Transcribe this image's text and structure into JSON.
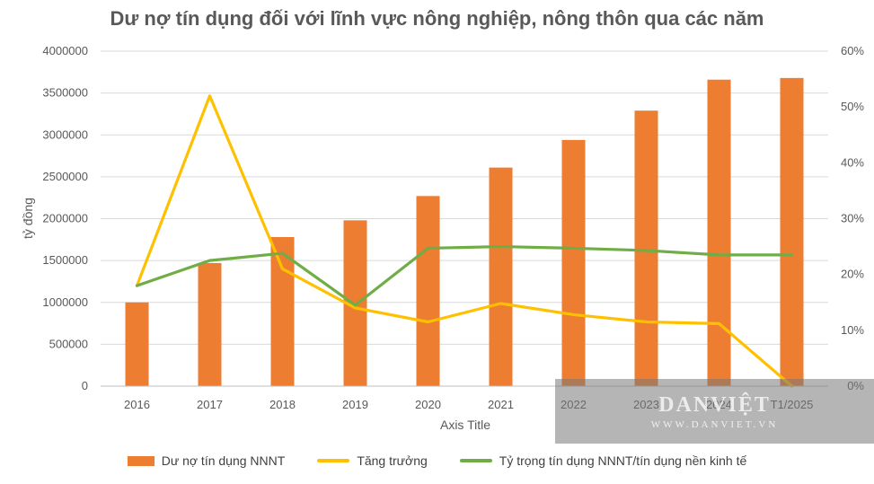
{
  "chart_data": {
    "type": "bar",
    "title": "Dư nợ tín dụng đối với lĩnh vực nông nghiệp, nông thôn qua các năm",
    "xlabel": "Axis Title",
    "ylabel": "tỷ đồng",
    "categories": [
      "2016",
      "2017",
      "2018",
      "2019",
      "2020",
      "2021",
      "2022",
      "2023",
      "2024",
      "T1/2025"
    ],
    "ylim": [
      0,
      4000000
    ],
    "y_ticks": [
      "0",
      "500000",
      "1000000",
      "1500000",
      "2000000",
      "2500000",
      "3000000",
      "3500000",
      "4000000"
    ],
    "y2lim": [
      0,
      0.6
    ],
    "y2_ticks": [
      "0%",
      "10%",
      "20%",
      "30%",
      "40%",
      "50%",
      "60%"
    ],
    "grid": true,
    "legend_position": "bottom",
    "series": [
      {
        "name": "Dư nợ tín dụng NNNT",
        "type": "bar",
        "axis": "left",
        "color": "#ED7D31",
        "values": [
          1000000,
          1470000,
          1780000,
          1980000,
          2270000,
          2610000,
          2940000,
          3290000,
          3660000,
          3680000
        ]
      },
      {
        "name": "Tăng trưởng",
        "type": "line",
        "axis": "right",
        "color": "#FFC000",
        "values": [
          0.18,
          0.52,
          0.21,
          0.14,
          0.115,
          0.148,
          0.128,
          0.115,
          0.112,
          0.0
        ]
      },
      {
        "name": "Tỷ trọng tín dụng NNNT/tín dụng nền kinh tế",
        "type": "line",
        "axis": "right",
        "color": "#70AD47",
        "values": [
          0.18,
          0.225,
          0.238,
          0.145,
          0.247,
          0.25,
          0.247,
          0.243,
          0.235,
          0.235
        ]
      }
    ]
  },
  "watermark": {
    "logo": "DANVIỆT",
    "url": "WWW.DANVIET.VN"
  }
}
